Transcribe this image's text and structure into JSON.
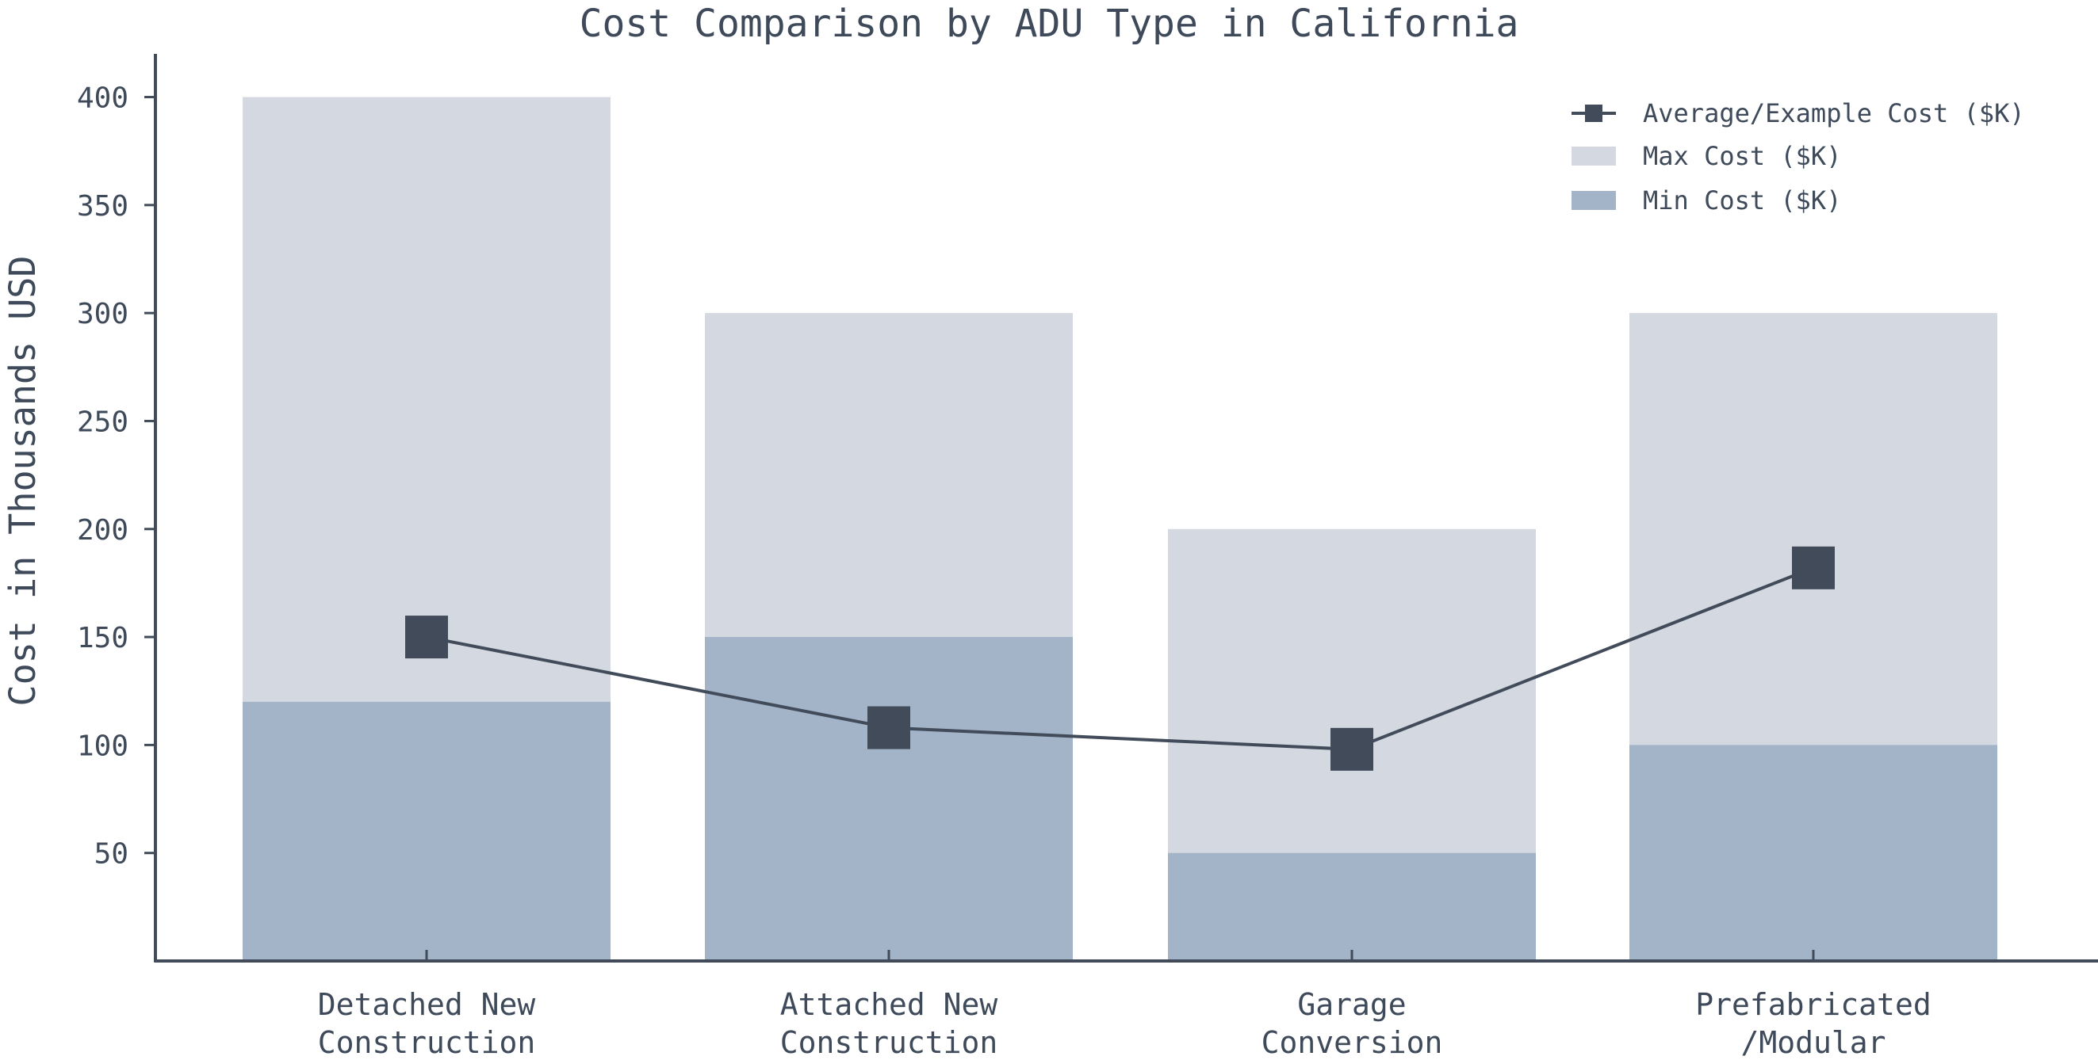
{
  "chart_data": {
    "type": "bar",
    "title": "Cost Comparison by ADU Type in California",
    "xlabel": "",
    "ylabel": "Cost in Thousands USD",
    "ylim": [
      0,
      420
    ],
    "yticks": [
      50,
      100,
      150,
      200,
      250,
      300,
      350,
      400
    ],
    "grid": false,
    "legend_position": "top-right",
    "categories": [
      [
        "Detached New",
        "Construction"
      ],
      [
        "Attached New",
        "Construction"
      ],
      [
        "Garage",
        "Conversion"
      ],
      [
        "Prefabricated",
        "/Modular"
      ]
    ],
    "series": [
      {
        "name": "Max Cost ($K)",
        "kind": "bar",
        "color": "#d4d9e1",
        "values": [
          400,
          300,
          200,
          300
        ]
      },
      {
        "name": "Min Cost ($K)",
        "kind": "bar",
        "color": "#a3b3c8",
        "values": [
          120,
          150,
          50,
          100
        ]
      },
      {
        "name": "Average/Example Cost ($K)",
        "kind": "line",
        "marker": "square",
        "color": "#414b5a",
        "values": [
          150,
          108,
          98,
          182
        ]
      }
    ],
    "legend_order": [
      "Average/Example Cost ($K)",
      "Max Cost ($K)",
      "Min Cost ($K)"
    ]
  }
}
